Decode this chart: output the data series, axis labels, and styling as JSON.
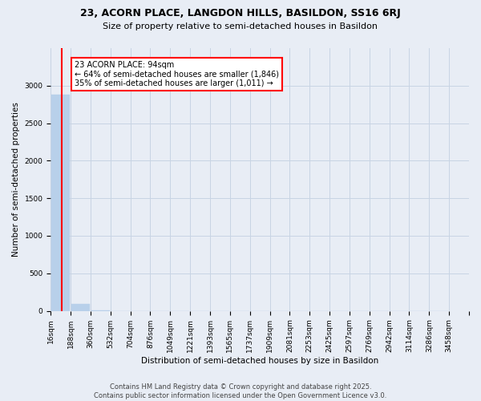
{
  "title": "23, ACORN PLACE, LANGDON HILLS, BASILDON, SS16 6RJ",
  "subtitle": "Size of property relative to semi-detached houses in Basildon",
  "xlabel": "Distribution of semi-detached houses by size in Basildon",
  "ylabel": "Number of semi-detached properties",
  "footer": "Contains HM Land Registry data © Crown copyright and database right 2025.\nContains public sector information licensed under the Open Government Licence v3.0.",
  "annotation_title": "23 ACORN PLACE: 94sqm",
  "annotation_line1": "← 64% of semi-detached houses are smaller (1,846)",
  "annotation_line2": "35% of semi-detached houses are larger (1,011) →",
  "property_size_bin_index": 0,
  "bar_color": "#b8d0ea",
  "bar_edge_color": "#b8d0ea",
  "grid_color": "#c8d4e4",
  "background_color": "#e8edf5",
  "vline_color": "red",
  "annotation_box_color": "red",
  "bin_labels": [
    "16sqm",
    "188sqm",
    "360sqm",
    "532sqm",
    "704sqm",
    "876sqm",
    "1049sqm",
    "1221sqm",
    "1393sqm",
    "1565sqm",
    "1737sqm",
    "1909sqm",
    "2081sqm",
    "2253sqm",
    "2425sqm",
    "2597sqm",
    "2769sqm",
    "2942sqm",
    "3114sqm",
    "3286sqm",
    "3458sqm"
  ],
  "bar_heights": [
    2880,
    90,
    2,
    1,
    0,
    0,
    0,
    0,
    0,
    0,
    0,
    0,
    0,
    0,
    0,
    0,
    0,
    0,
    0,
    0
  ],
  "ylim": [
    0,
    3500
  ],
  "yticks": [
    0,
    500,
    1000,
    1500,
    2000,
    2500,
    3000
  ],
  "title_fontsize": 9,
  "subtitle_fontsize": 8,
  "footer_fontsize": 6,
  "ylabel_fontsize": 7.5,
  "xlabel_fontsize": 7.5,
  "tick_fontsize": 6.5
}
